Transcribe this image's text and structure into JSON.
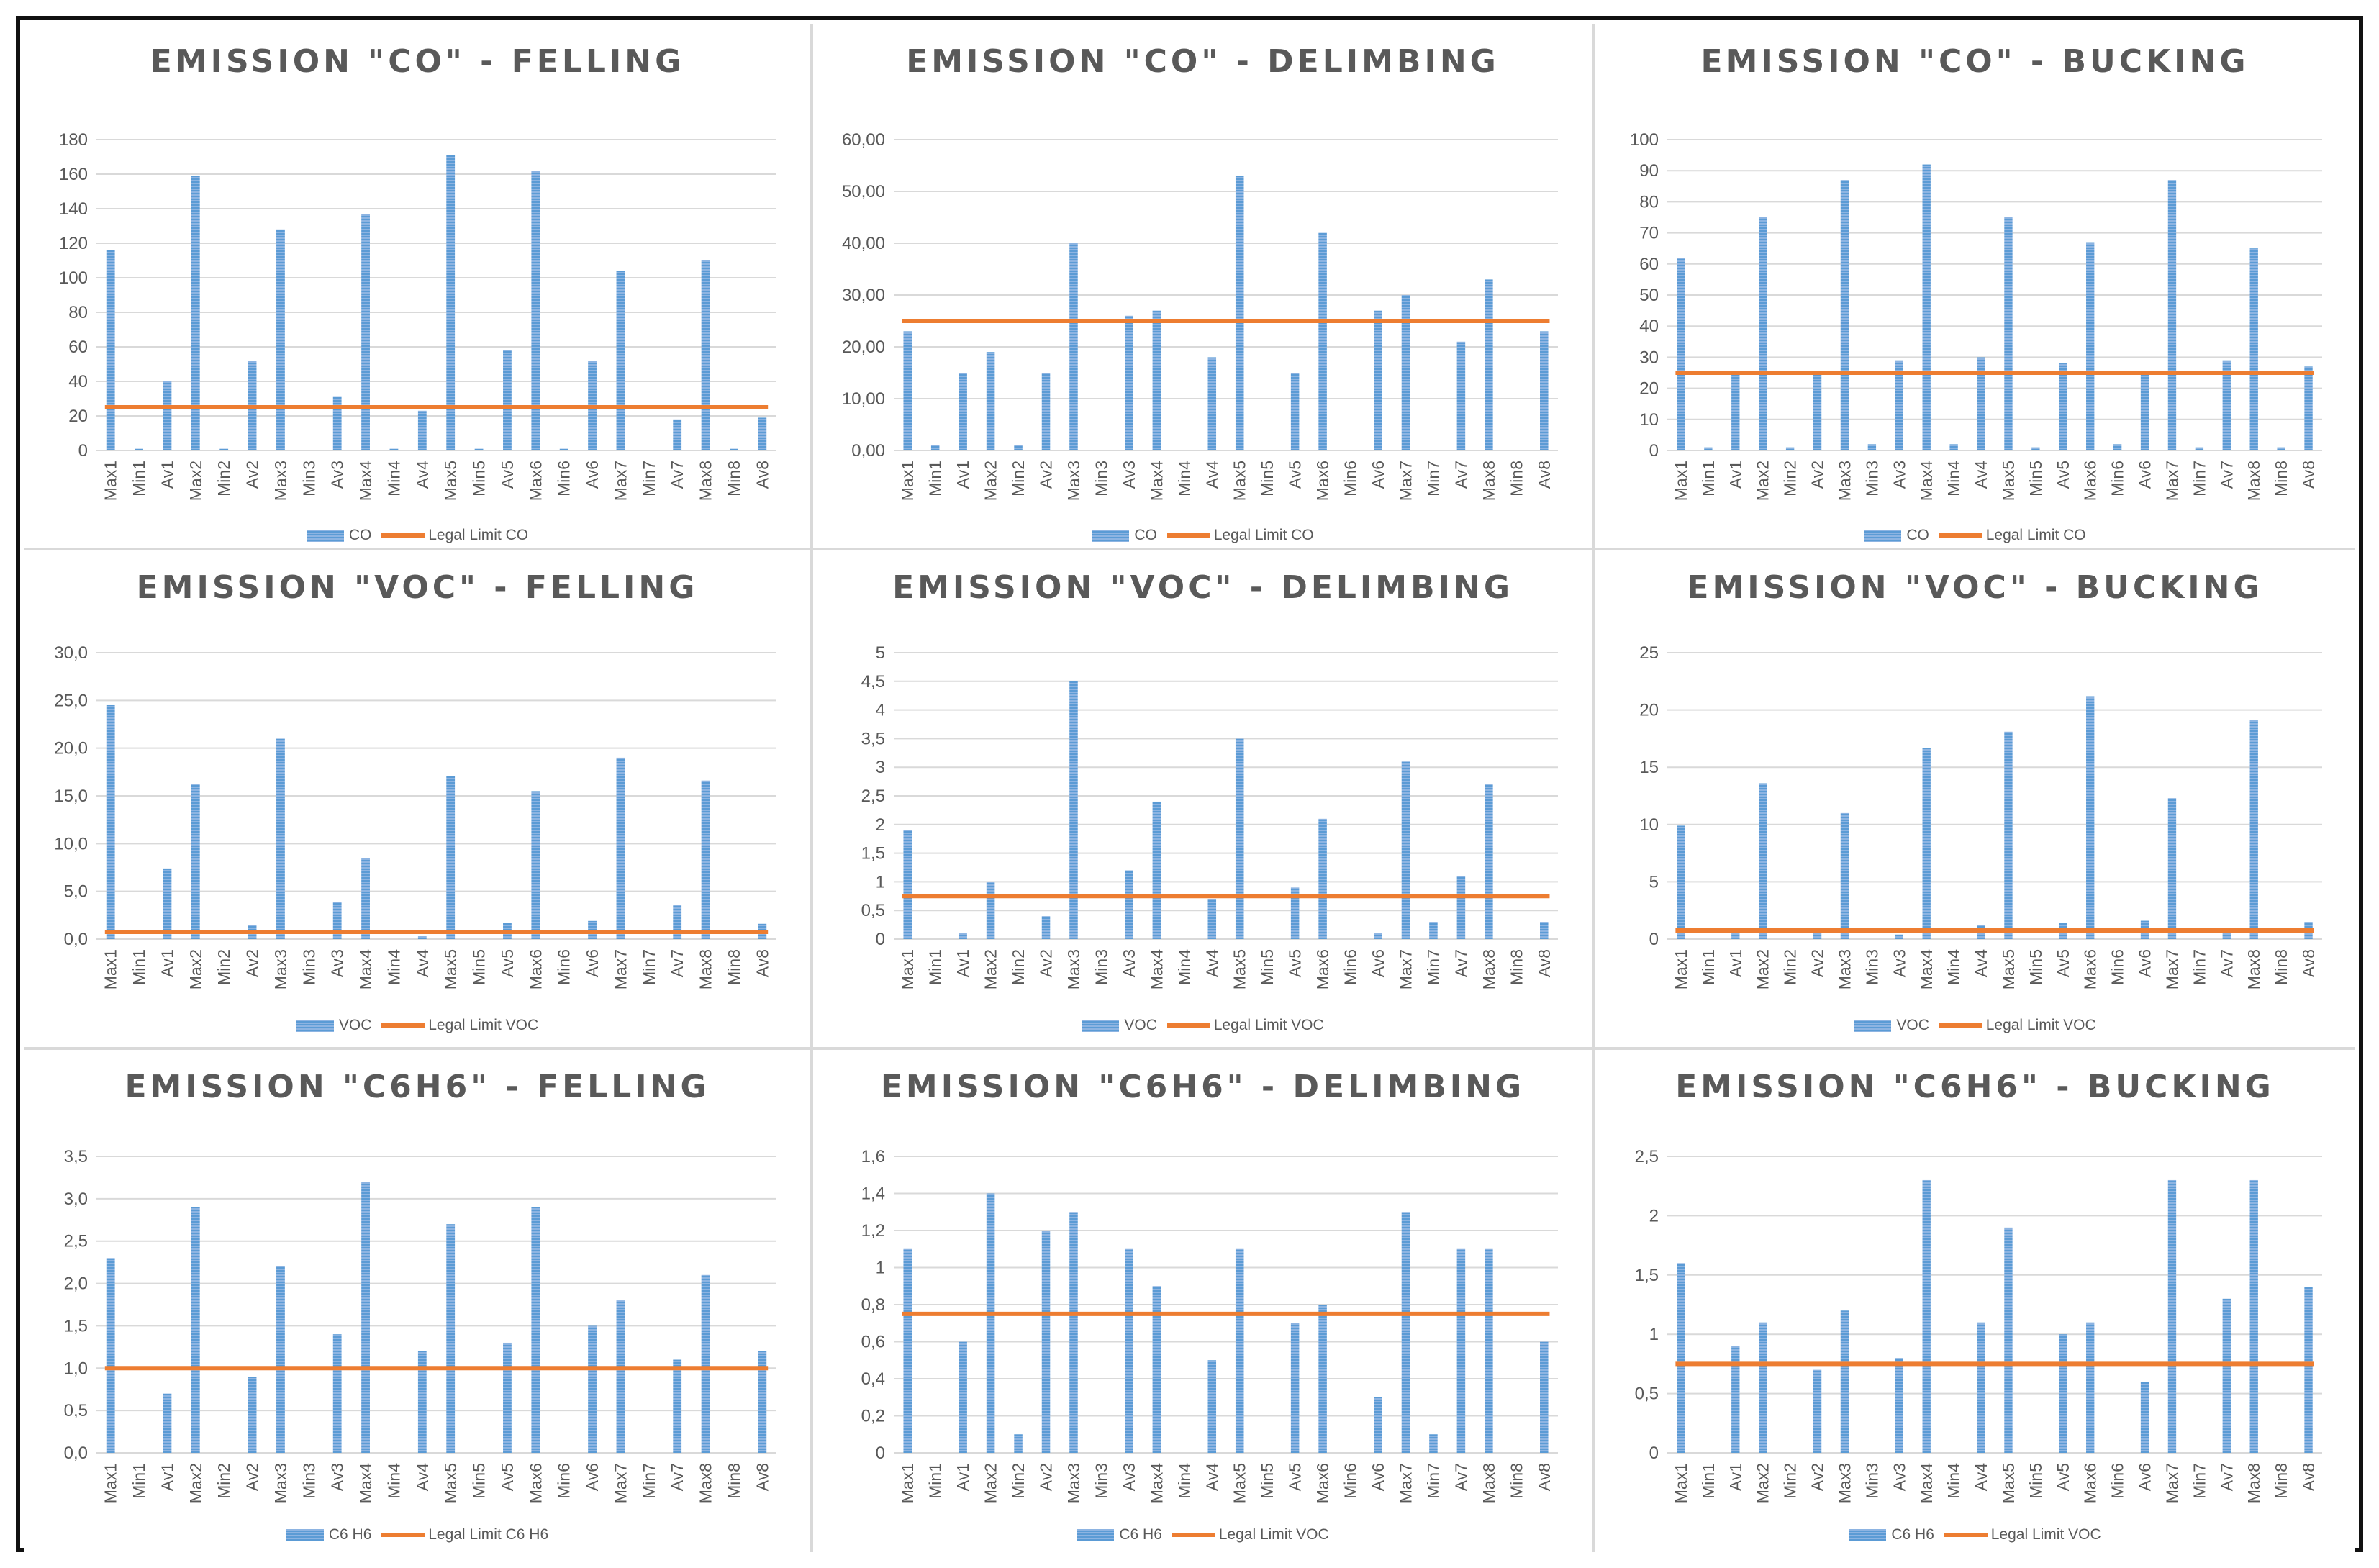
{
  "colors": {
    "bar": "#5b9bd5",
    "bar_light": "#8db4e2",
    "limit": "#ed7d31",
    "grid": "#d9d9d9",
    "text": "#595959"
  },
  "charts": [
    {
      "title": "EMISSION \"CO\" - FELLING",
      "legend": {
        "bar": "CO",
        "line": "Legal Limit CO"
      },
      "y_ticks": [
        "0",
        "20",
        "40",
        "60",
        "80",
        "100",
        "120",
        "140",
        "160",
        "180"
      ],
      "chart_data": {
        "type": "bar+line",
        "title": "EMISSION \"CO\" - FELLING",
        "categories": [
          "Max1",
          "Min1",
          "Av1",
          "Max2",
          "Min2",
          "Av2",
          "Max3",
          "Min3",
          "Av3",
          "Max4",
          "Min4",
          "Av4",
          "Max5",
          "Min5",
          "Av5",
          "Max6",
          "Min6",
          "Av6",
          "Max7",
          "Min7",
          "Av7",
          "Max8",
          "Min8",
          "Av8"
        ],
        "series": [
          {
            "name": "CO",
            "kind": "bar",
            "values": [
              116,
              1,
              40,
              159,
              1,
              52,
              128,
              0,
              31,
              137,
              1,
              23,
              171,
              1,
              58,
              162,
              1,
              52,
              104,
              0,
              18,
              110,
              1,
              19
            ]
          },
          {
            "name": "Legal Limit CO",
            "kind": "line",
            "value": 25
          }
        ],
        "ylim": [
          0,
          180
        ],
        "ystep": 20
      }
    },
    {
      "title": "EMISSION \"CO\" - DELIMBING",
      "legend": {
        "bar": "CO",
        "line": "Legal Limit CO"
      },
      "y_ticks": [
        "0,00",
        "10,00",
        "20,00",
        "30,00",
        "40,00",
        "50,00",
        "60,00"
      ],
      "chart_data": {
        "type": "bar+line",
        "title": "EMISSION \"CO\" - DELIMBING",
        "categories": [
          "Max1",
          "Min1",
          "Av1",
          "Max2",
          "Min2",
          "Av2",
          "Max3",
          "Min3",
          "Av3",
          "Max4",
          "Min4",
          "Av4",
          "Max5",
          "Min5",
          "Av5",
          "Max6",
          "Min6",
          "Av6",
          "Max7",
          "Min7",
          "Av7",
          "Max8",
          "Min8",
          "Av8"
        ],
        "series": [
          {
            "name": "CO",
            "kind": "bar",
            "values": [
              23,
              1,
              15,
              19,
              1,
              15,
              40,
              0,
              26,
              27,
              0,
              18,
              53,
              0,
              15,
              42,
              0,
              27,
              30,
              0,
              21,
              33,
              0,
              23
            ]
          },
          {
            "name": "Legal Limit CO",
            "kind": "line",
            "value": 25
          }
        ],
        "ylim": [
          0,
          60
        ],
        "ystep": 10
      }
    },
    {
      "title": "EMISSION \"CO\" - BUCKING",
      "legend": {
        "bar": "CO",
        "line": "Legal Limit CO"
      },
      "y_ticks": [
        "0",
        "10",
        "20",
        "30",
        "40",
        "50",
        "60",
        "70",
        "80",
        "90",
        "100"
      ],
      "chart_data": {
        "type": "bar+line",
        "title": "EMISSION \"CO\" - BUCKING",
        "categories": [
          "Max1",
          "Min1",
          "Av1",
          "Max2",
          "Min2",
          "Av2",
          "Max3",
          "Min3",
          "Av3",
          "Max4",
          "Min4",
          "Av4",
          "Max5",
          "Min5",
          "Av5",
          "Max6",
          "Min6",
          "Av6",
          "Max7",
          "Min7",
          "Av7",
          "Max8",
          "Min8",
          "Av8"
        ],
        "series": [
          {
            "name": "CO",
            "kind": "bar",
            "values": [
              62,
              1,
              25,
              75,
              1,
              25,
              87,
              2,
              29,
              92,
              2,
              30,
              75,
              1,
              28,
              67,
              2,
              25,
              87,
              1,
              29,
              65,
              1,
              27
            ]
          },
          {
            "name": "Legal Limit CO",
            "kind": "line",
            "value": 25
          }
        ],
        "ylim": [
          0,
          100
        ],
        "ystep": 10
      }
    },
    {
      "title": "EMISSION \"VOC\" - FELLING",
      "legend": {
        "bar": "VOC",
        "line": "Legal Limit VOC"
      },
      "y_ticks": [
        "0,0",
        "5,0",
        "10,0",
        "15,0",
        "20,0",
        "25,0",
        "30,0"
      ],
      "chart_data": {
        "type": "bar+line",
        "title": "EMISSION \"VOC\" - FELLING",
        "categories": [
          "Max1",
          "Min1",
          "Av1",
          "Max2",
          "Min2",
          "Av2",
          "Max3",
          "Min3",
          "Av3",
          "Max4",
          "Min4",
          "Av4",
          "Max5",
          "Min5",
          "Av5",
          "Max6",
          "Min6",
          "Av6",
          "Max7",
          "Min7",
          "Av7",
          "Max8",
          "Min8",
          "Av8"
        ],
        "series": [
          {
            "name": "VOC",
            "kind": "bar",
            "values": [
              24.5,
              0,
              7.4,
              16.2,
              0,
              1.5,
              21,
              0,
              3.9,
              8.5,
              0,
              0.3,
              17.1,
              0,
              1.7,
              15.5,
              0,
              1.9,
              19,
              0,
              3.6,
              16.6,
              0,
              1.6
            ]
          },
          {
            "name": "Legal Limit VOC",
            "kind": "line",
            "value": 0.75
          }
        ],
        "ylim": [
          0,
          30
        ],
        "ystep": 5
      }
    },
    {
      "title": "EMISSION \"VOC\" - DELIMBING",
      "legend": {
        "bar": "VOC",
        "line": "Legal Limit VOC"
      },
      "y_ticks": [
        "0",
        "0,5",
        "1",
        "1,5",
        "2",
        "2,5",
        "3",
        "3,5",
        "4",
        "4,5",
        "5"
      ],
      "chart_data": {
        "type": "bar+line",
        "title": "EMISSION \"VOC\" - DELIMBING",
        "categories": [
          "Max1",
          "Min1",
          "Av1",
          "Max2",
          "Min2",
          "Av2",
          "Max3",
          "Min3",
          "Av3",
          "Max4",
          "Min4",
          "Av4",
          "Max5",
          "Min5",
          "Av5",
          "Max6",
          "Min6",
          "Av6",
          "Max7",
          "Min7",
          "Av7",
          "Max8",
          "Min8",
          "Av8"
        ],
        "series": [
          {
            "name": "VOC",
            "kind": "bar",
            "values": [
              1.9,
              0,
              0.1,
              1,
              0,
              0.4,
              4.5,
              0,
              1.2,
              2.4,
              0,
              0.7,
              3.5,
              0,
              0.9,
              2.1,
              0,
              0.1,
              3.1,
              0.3,
              1.1,
              2.7,
              0,
              0.3
            ]
          },
          {
            "name": "Legal Limit VOC",
            "kind": "line",
            "value": 0.75
          }
        ],
        "ylim": [
          0,
          5
        ],
        "ystep": 0.5
      }
    },
    {
      "title": "EMISSION \"VOC\" - BUCKING",
      "legend": {
        "bar": "VOC",
        "line": "Legal Limit VOC"
      },
      "y_ticks": [
        "0",
        "5",
        "10",
        "15",
        "20",
        "25"
      ],
      "chart_data": {
        "type": "bar+line",
        "title": "EMISSION \"VOC\" - BUCKING",
        "categories": [
          "Max1",
          "Min1",
          "Av1",
          "Max2",
          "Min2",
          "Av2",
          "Max3",
          "Min3",
          "Av3",
          "Max4",
          "Min4",
          "Av4",
          "Max5",
          "Min5",
          "Av5",
          "Max6",
          "Min6",
          "Av6",
          "Max7",
          "Min7",
          "Av7",
          "Max8",
          "Min8",
          "Av8"
        ],
        "series": [
          {
            "name": "VOC",
            "kind": "bar",
            "values": [
              9.9,
              0,
              0.5,
              13.6,
              0,
              0.6,
              11,
              0,
              0.4,
              16.7,
              0,
              1.2,
              18.1,
              0,
              1.4,
              21.2,
              0,
              1.6,
              12.3,
              0,
              0.7,
              19.1,
              0,
              1.5
            ]
          },
          {
            "name": "Legal Limit VOC",
            "kind": "line",
            "value": 0.75
          }
        ],
        "ylim": [
          0,
          25
        ],
        "ystep": 5
      }
    },
    {
      "title": "EMISSION \"C6H6\" - FELLING",
      "legend": {
        "bar": "C6 H6",
        "line": "Legal Limit C6 H6"
      },
      "y_ticks": [
        "0,0",
        "0,5",
        "1,0",
        "1,5",
        "2,0",
        "2,5",
        "3,0",
        "3,5"
      ],
      "chart_data": {
        "type": "bar+line",
        "title": "EMISSION \"C6H6\" - FELLING",
        "categories": [
          "Max1",
          "Min1",
          "Av1",
          "Max2",
          "Min2",
          "Av2",
          "Max3",
          "Min3",
          "Av3",
          "Max4",
          "Min4",
          "Av4",
          "Max5",
          "Min5",
          "Av5",
          "Max6",
          "Min6",
          "Av6",
          "Max7",
          "Min7",
          "Av7",
          "Max8",
          "Min8",
          "Av8"
        ],
        "series": [
          {
            "name": "C6 H6",
            "kind": "bar",
            "values": [
              2.3,
              0,
              0.7,
              2.9,
              0,
              0.9,
              2.2,
              0,
              1.4,
              3.2,
              0,
              1.2,
              2.7,
              0,
              1.3,
              2.9,
              0,
              1.5,
              1.8,
              0,
              1.1,
              2.1,
              0,
              1.2
            ]
          },
          {
            "name": "Legal Limit C6 H6",
            "kind": "line",
            "value": 1.0
          }
        ],
        "ylim": [
          0,
          3.5
        ],
        "ystep": 0.5
      }
    },
    {
      "title": "EMISSION \"C6H6\" - DELIMBING",
      "legend": {
        "bar": "C6 H6",
        "line": "Legal Limit VOC"
      },
      "y_ticks": [
        "0",
        "0,2",
        "0,4",
        "0,6",
        "0,8",
        "1",
        "1,2",
        "1,4",
        "1,6"
      ],
      "chart_data": {
        "type": "bar+line",
        "title": "EMISSION \"C6H6\" - DELIMBING",
        "categories": [
          "Max1",
          "Min1",
          "Av1",
          "Max2",
          "Min2",
          "Av2",
          "Max3",
          "Min3",
          "Av3",
          "Max4",
          "Min4",
          "Av4",
          "Max5",
          "Min5",
          "Av5",
          "Max6",
          "Min6",
          "Av6",
          "Max7",
          "Min7",
          "Av7",
          "Max8",
          "Min8",
          "Av8"
        ],
        "series": [
          {
            "name": "C6 H6",
            "kind": "bar",
            "values": [
              1.1,
              0,
              0.6,
              1.4,
              0.1,
              1.2,
              1.3,
              0,
              1.1,
              0.9,
              0,
              0.5,
              1.1,
              0,
              0.7,
              0.8,
              0,
              0.3,
              1.3,
              0.1,
              1.1,
              1.1,
              0,
              0.6
            ]
          },
          {
            "name": "Legal Limit VOC",
            "kind": "line",
            "value": 0.75
          }
        ],
        "ylim": [
          0,
          1.6
        ],
        "ystep": 0.2
      }
    },
    {
      "title": "EMISSION \"C6H6\" - BUCKING",
      "legend": {
        "bar": "C6 H6",
        "line": "Legal Limit VOC"
      },
      "y_ticks": [
        "0",
        "0,5",
        "1",
        "1,5",
        "2",
        "2,5"
      ],
      "chart_data": {
        "type": "bar+line",
        "title": "EMISSION \"C6H6\" - BUCKING",
        "categories": [
          "Max1",
          "Min1",
          "Av1",
          "Max2",
          "Min2",
          "Av2",
          "Max3",
          "Min3",
          "Av3",
          "Max4",
          "Min4",
          "Av4",
          "Max5",
          "Min5",
          "Av5",
          "Max6",
          "Min6",
          "Av6",
          "Max7",
          "Min7",
          "Av7",
          "Max8",
          "Min8",
          "Av8"
        ],
        "series": [
          {
            "name": "C6 H6",
            "kind": "bar",
            "values": [
              1.6,
              0,
              0.9,
              1.1,
              0,
              0.7,
              1.2,
              0,
              0.8,
              2.3,
              0,
              1.1,
              1.9,
              0,
              1.0,
              1.1,
              0,
              0.6,
              2.3,
              0,
              1.3,
              2.3,
              0,
              1.4
            ]
          },
          {
            "name": "Legal Limit VOC",
            "kind": "line",
            "value": 0.75
          }
        ],
        "ylim": [
          0,
          2.5
        ],
        "ystep": 0.5
      }
    }
  ]
}
